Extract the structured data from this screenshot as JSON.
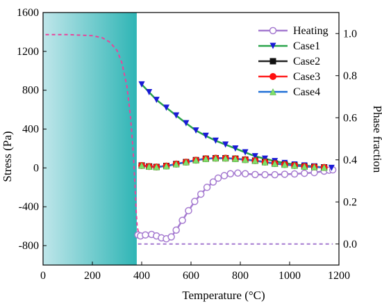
{
  "chart_data": {
    "type": "line",
    "xlabel": "Temperature (°C)",
    "ylabel": "Stress (Pa)",
    "y2label": "Phase fraction",
    "xlim": [
      0,
      1200
    ],
    "ylim": [
      -1000,
      1600
    ],
    "y2lim": [
      -0.1,
      1.1
    ],
    "xticks": [
      "0",
      "200",
      "400",
      "600",
      "800",
      "1000",
      "1200"
    ],
    "yticks": [
      "-800",
      "-400",
      "0",
      "400",
      "800",
      "1200",
      "1600"
    ],
    "y2ticks": [
      "0.0",
      "0.2",
      "0.4",
      "0.6",
      "0.8",
      "1.0"
    ],
    "grid": false,
    "legend_position": "top-right",
    "shaded_region": {
      "x": [
        0,
        380
      ],
      "color_left": "#bfe6ea",
      "color_right": "#2fb5b5"
    },
    "series": [
      {
        "name": "Heating",
        "color": "#a57ad0",
        "marker": "open-circle",
        "x": [
          385,
          395,
          415,
          440,
          460,
          480,
          500,
          520,
          540,
          565,
          590,
          615,
          640,
          665,
          690,
          710,
          735,
          760,
          790,
          820,
          860,
          900,
          940,
          980,
          1020,
          1060,
          1100,
          1140,
          1160,
          1175
        ],
        "y": [
          -690,
          -700,
          -690,
          -685,
          -700,
          -720,
          -730,
          -710,
          -640,
          -540,
          -440,
          -345,
          -270,
          -200,
          -145,
          -105,
          -80,
          -60,
          -53,
          -60,
          -68,
          -70,
          -70,
          -65,
          -62,
          -55,
          -48,
          -33,
          -23,
          -20
        ]
      },
      {
        "name": "Case1",
        "color": "#2aa44a",
        "marker": "blue-triangle-down",
        "x": [
          400,
          430,
          460,
          500,
          540,
          580,
          620,
          660,
          700,
          740,
          780,
          820,
          860,
          900,
          940,
          980,
          1020,
          1060,
          1100,
          1140,
          1170
        ],
        "y": [
          860,
          780,
          700,
          620,
          540,
          460,
          385,
          330,
          280,
          240,
          200,
          160,
          120,
          95,
          70,
          50,
          35,
          25,
          15,
          5,
          0
        ]
      },
      {
        "name": "Case2",
        "color": "#222222",
        "marker": "square",
        "x": [
          400,
          430,
          460,
          500,
          540,
          580,
          620,
          660,
          700,
          740,
          780,
          820,
          860,
          900,
          940,
          980,
          1020,
          1060,
          1100,
          1140
        ],
        "y": [
          25,
          15,
          10,
          20,
          40,
          60,
          80,
          95,
          100,
          100,
          95,
          85,
          75,
          60,
          45,
          35,
          25,
          15,
          10,
          5
        ]
      },
      {
        "name": "Case3",
        "color": "#ff2020",
        "marker": "filled-circle",
        "x": [
          400,
          430,
          460,
          500,
          540,
          580,
          620,
          660,
          700,
          740,
          780,
          820,
          860,
          900,
          940,
          980,
          1020,
          1060,
          1100,
          1140
        ],
        "y": [
          25,
          15,
          10,
          20,
          40,
          60,
          80,
          95,
          100,
          100,
          95,
          85,
          75,
          60,
          45,
          35,
          25,
          15,
          10,
          5
        ]
      },
      {
        "name": "Case4",
        "color": "#1f6fd6",
        "marker": "green-triangle-up",
        "x": [
          400,
          430,
          460,
          500,
          540,
          580,
          620,
          660,
          700,
          740,
          780,
          820,
          860,
          900,
          940,
          980,
          1020,
          1060,
          1100,
          1140
        ],
        "y": [
          25,
          15,
          10,
          20,
          40,
          60,
          80,
          95,
          100,
          100,
          95,
          85,
          75,
          60,
          45,
          35,
          25,
          15,
          10,
          5
        ]
      }
    ],
    "phase_curves": [
      {
        "color": "#e8459a",
        "style": "dashed",
        "axis": "right",
        "x": [
          10,
          100,
          200,
          240,
          270,
          300,
          320,
          340,
          355,
          365,
          372,
          378,
          382,
          388,
          395
        ],
        "y": [
          0.995,
          0.995,
          0.99,
          0.98,
          0.96,
          0.92,
          0.86,
          0.75,
          0.6,
          0.45,
          0.3,
          0.15,
          0.08,
          0.05,
          0.04
        ]
      },
      {
        "color": "#a57ad0",
        "style": "dashed",
        "axis": "right",
        "x": [
          385,
          1175
        ],
        "y": [
          0.0,
          0.0
        ]
      }
    ]
  }
}
